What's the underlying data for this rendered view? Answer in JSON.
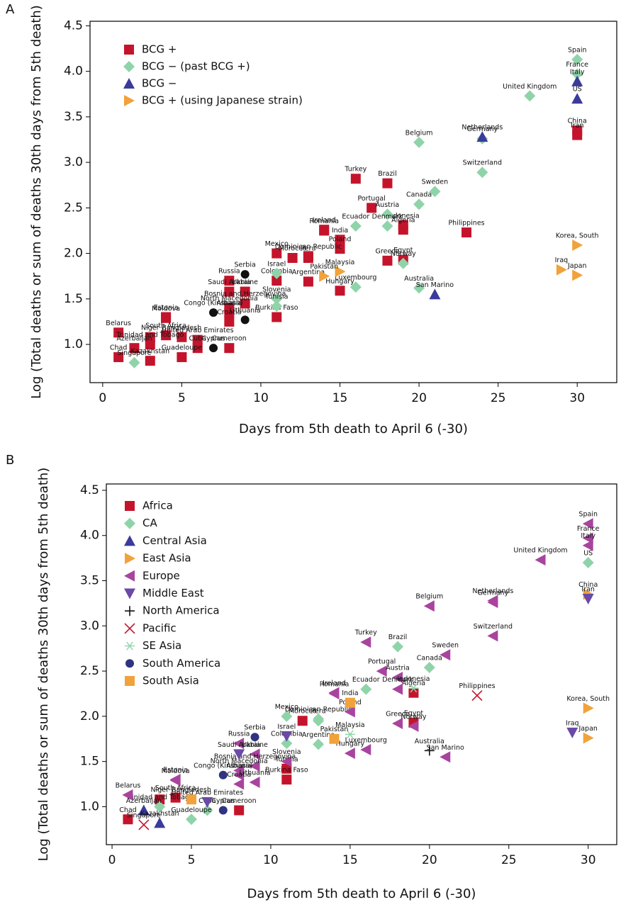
{
  "chart_data": [
    {
      "type": "scatter",
      "panel": "A",
      "xlabel": "Days from 5th death to April 6 (-30)",
      "ylabel": "Log (Total deaths or sum of deaths 30th days from 5th death)",
      "xlim": [
        -0.8,
        32.5
      ],
      "ylim": [
        0.58,
        4.55
      ],
      "xticks": [
        0,
        5,
        10,
        15,
        20,
        25,
        30
      ],
      "yticks": [
        {
          "value": 1,
          "label": "1.0"
        },
        {
          "value": 1.5,
          "label": "1.5"
        },
        {
          "value": 2,
          "label": "2.0"
        },
        {
          "value": 2.5,
          "label": "2.5"
        },
        {
          "value": 3,
          "label": "3.0"
        },
        {
          "value": 3.5,
          "label": "3.5"
        },
        {
          "value": 4,
          "label": "4.0"
        },
        {
          "value": 4.5,
          "label": "4.5"
        }
      ],
      "series": [
        {
          "name": "BCG +",
          "color": "#c4142c",
          "marker": "square",
          "labels": [
            "China",
            "Iran",
            "Turkey",
            "Brazil",
            "Portugal",
            "Indonesia",
            "Algeria",
            "Philippines",
            "Romania",
            "Ireland",
            "India",
            "Poland",
            "Mexico",
            "Dominican Republic",
            "Peru",
            "Morocco",
            "Greece",
            "Egypt",
            "Russia",
            "Colombia",
            "Argentina",
            "Hungary",
            "Saudi Arabia",
            "Ukraine",
            "Bosnia and Herzegovina",
            "North Macedonia",
            "Albania",
            "Burkina Faso",
            "Croatia",
            "Moldova",
            "Estonia",
            "Belarus",
            "Niger",
            "South Africa",
            "Bangladesh",
            "United Arab Emirates",
            "Cuba",
            "Cameroon",
            "Trinidad and Tobago",
            "Azerbaijan",
            "Chad",
            "Kazakhstan",
            "Guadeloupe"
          ],
          "x": [
            30,
            30,
            16,
            18,
            17,
            19,
            19,
            23,
            14,
            14,
            15,
            15,
            11,
            13,
            13,
            12,
            18,
            19,
            8,
            11,
            13,
            15,
            8,
            9,
            9,
            8,
            8,
            11,
            8,
            4,
            4,
            1,
            3,
            4,
            5,
            6,
            6,
            8,
            3,
            2,
            1,
            3,
            5
          ],
          "values": [
            3.35,
            3.3,
            2.82,
            2.77,
            2.5,
            2.31,
            2.26,
            2.23,
            2.25,
            2.26,
            2.15,
            2.05,
            2.0,
            1.97,
            1.95,
            1.95,
            1.92,
            1.93,
            1.7,
            1.7,
            1.69,
            1.59,
            1.58,
            1.58,
            1.45,
            1.4,
            1.35,
            1.3,
            1.25,
            1.29,
            1.3,
            1.13,
            1.08,
            1.1,
            1.08,
            1.05,
            0.96,
            0.96,
            1.0,
            0.96,
            0.86,
            0.82,
            0.86
          ]
        },
        {
          "name": "BCG − (past BCG +)",
          "color": "#8fd4a9",
          "marker": "diamond",
          "labels": [
            "Spain",
            "France",
            "United Kingdom",
            "Belgium",
            "Germany",
            "Switzerland",
            "Sweden",
            "Canada",
            "Austria",
            "Denmark",
            "Ecuador",
            "Norway",
            "Israel",
            "Luxembourg",
            "Australia",
            "Slovenia",
            "Tunisia",
            "Singapore"
          ],
          "x": [
            30,
            30,
            27,
            20,
            24,
            24,
            21,
            20,
            18,
            18,
            16,
            19,
            11,
            16,
            20,
            11,
            11,
            2
          ],
          "values": [
            4.13,
            3.97,
            3.73,
            3.22,
            3.26,
            2.89,
            2.68,
            2.54,
            2.43,
            2.3,
            2.3,
            1.89,
            1.78,
            1.63,
            1.62,
            1.5,
            1.42,
            0.8
          ]
        },
        {
          "name": "BCG −",
          "color": "#3b3b9c",
          "marker": "tri-up",
          "labels": [
            "Italy",
            "US",
            "Netherlands",
            "San Marino"
          ],
          "x": [
            30,
            30,
            24,
            21
          ],
          "values": [
            3.89,
            3.7,
            3.28,
            1.55
          ]
        },
        {
          "name": "BCG + (using Japanese strain)",
          "color": "#f2a23a",
          "marker": "tri-right",
          "labels": [
            "Korea, South",
            "Malaysia",
            "Pakistan",
            "Iraq",
            "Japan"
          ],
          "x": [
            30,
            15,
            14,
            29,
            30
          ],
          "values": [
            2.09,
            1.8,
            1.75,
            1.82,
            1.76
          ]
        },
        {
          "color": "#111111",
          "marker": "circle",
          "labels": [
            "Serbia",
            "Congo (Kinshasa)",
            "Lithuania",
            "Cyprus"
          ],
          "x": [
            9,
            7,
            9,
            7
          ],
          "values": [
            1.77,
            1.35,
            1.27,
            0.96
          ]
        }
      ]
    },
    {
      "type": "scatter",
      "panel": "B",
      "xlabel": "Days from 5th death to April 6 (-30)",
      "ylabel": "Log (Total deaths or sum of deaths 30th days from 5th death)",
      "xlim": [
        -0.36,
        31.8
      ],
      "ylim": [
        0.58,
        4.57
      ],
      "xticks": [
        0,
        5,
        10,
        15,
        20,
        25,
        30
      ],
      "yticks": [
        {
          "value": 1,
          "label": "1.0"
        },
        {
          "value": 1.5,
          "label": "1.5"
        },
        {
          "value": 2,
          "label": "2.0"
        },
        {
          "value": 2.5,
          "label": "2.5"
        },
        {
          "value": 3,
          "label": "3.0"
        },
        {
          "value": 3.5,
          "label": "3.5"
        },
        {
          "value": 4,
          "label": "4.0"
        },
        {
          "value": 4.5,
          "label": "4.5"
        }
      ],
      "series": [
        {
          "name": "Africa",
          "color": "#c4142c",
          "marker": "square",
          "labels": [
            "Algeria",
            "Morocco",
            "Egypt",
            "Tunisia",
            "Burkina Faso",
            "Niger",
            "South Africa",
            "Cameroon",
            "Chad"
          ],
          "x": [
            19,
            12,
            19,
            11,
            11,
            3,
            4,
            8,
            1
          ],
          "values": [
            2.26,
            1.95,
            1.93,
            1.42,
            1.3,
            1.08,
            1.1,
            0.96,
            0.86
          ]
        },
        {
          "name": "CA",
          "color": "#8fd4a9",
          "marker": "diamond",
          "labels": [
            "US",
            "Brazil",
            "Canada",
            "Ecuador",
            "Mexico",
            "Dominican Republic",
            "Peru",
            "Colombia",
            "Argentina",
            "Cuba",
            "Trinidad and Tobago",
            "Guadeloupe"
          ],
          "x": [
            30,
            18,
            20,
            16,
            11,
            13,
            13,
            11,
            13,
            6,
            3,
            5
          ],
          "values": [
            3.7,
            2.77,
            2.54,
            2.3,
            2.0,
            1.97,
            1.95,
            1.7,
            1.69,
            0.96,
            1.0,
            0.86
          ]
        },
        {
          "name": "Central Asia",
          "color": "#3b3b9c",
          "marker": "tri-up",
          "labels": [
            "Azerbaijan",
            "Kazakhstan"
          ],
          "x": [
            2,
            3
          ],
          "values": [
            0.96,
            0.82
          ]
        },
        {
          "name": "East Asia",
          "color": "#f2a23a",
          "marker": "tri-right",
          "labels": [
            "China",
            "Korea, South",
            "Japan"
          ],
          "x": [
            30,
            30,
            30
          ],
          "values": [
            3.35,
            2.09,
            1.76
          ]
        },
        {
          "name": "Europe",
          "color": "#a8449e",
          "marker": "tri-left",
          "labels": [
            "Spain",
            "France",
            "Italy",
            "United Kingdom",
            "Belgium",
            "Netherlands",
            "Germany",
            "Switzerland",
            "Turkey",
            "Sweden",
            "Portugal",
            "Austria",
            "Denmark",
            "Romania",
            "Ireland",
            "Poland",
            "Greece",
            "Norway",
            "Russia",
            "Hungary",
            "Luxembourg",
            "San Marino",
            "Ukraine",
            "Slovenia",
            "Bosnia and Herzegovina",
            "North Macedonia",
            "Albania",
            "Croatia",
            "Lithuania",
            "Moldova",
            "Estonia",
            "Belarus"
          ],
          "x": [
            30,
            30,
            30,
            27,
            20,
            24,
            24,
            24,
            16,
            21,
            17,
            18,
            18,
            14,
            14,
            15,
            18,
            19,
            8,
            15,
            16,
            21,
            9,
            11,
            9,
            8,
            8,
            8,
            9,
            4,
            4,
            1
          ],
          "values": [
            4.13,
            3.97,
            3.89,
            3.73,
            3.22,
            3.28,
            3.26,
            2.89,
            2.82,
            2.68,
            2.5,
            2.43,
            2.3,
            2.25,
            2.26,
            2.05,
            1.92,
            1.89,
            1.7,
            1.59,
            1.63,
            1.55,
            1.58,
            1.5,
            1.45,
            1.4,
            1.35,
            1.25,
            1.27,
            1.29,
            1.3,
            1.13
          ]
        },
        {
          "name": "Middle East",
          "color": "#6a4aa8",
          "marker": "tri-down",
          "labels": [
            "Iran",
            "Israel",
            "Iraq",
            "Saudi Arabia",
            "United Arab Emirates"
          ],
          "x": [
            30,
            11,
            29,
            8,
            6
          ],
          "values": [
            3.3,
            1.78,
            1.82,
            1.58,
            1.05
          ]
        },
        {
          "name": "North America",
          "color": "#111111",
          "marker": "plus",
          "labels": [
            "Australia"
          ],
          "x": [
            20
          ],
          "values": [
            1.62
          ]
        },
        {
          "name": "Pacific",
          "color": "#c4142c",
          "marker": "cross",
          "labels": [
            "Philippines",
            "Singapore"
          ],
          "x": [
            23,
            2
          ],
          "values": [
            2.23,
            0.8
          ]
        },
        {
          "name": "SE Asia",
          "color": "#8fd4a9",
          "marker": "asterisk",
          "labels": [
            "Indonesia",
            "Malaysia"
          ],
          "x": [
            19,
            15
          ],
          "values": [
            2.31,
            1.8
          ]
        },
        {
          "name": "South America",
          "color": "#2f3380",
          "marker": "circle",
          "labels": [
            "Serbia",
            "Congo (Kinshasa)",
            "Cyprus"
          ],
          "x": [
            9,
            7,
            7
          ],
          "values": [
            1.77,
            1.35,
            0.96
          ]
        },
        {
          "name": "South Asia",
          "color": "#f2a23a",
          "marker": "square",
          "labels": [
            "India",
            "Pakistan",
            "Bangladesh"
          ],
          "x": [
            15,
            14,
            5
          ],
          "values": [
            2.15,
            1.75,
            1.08
          ]
        }
      ]
    }
  ]
}
